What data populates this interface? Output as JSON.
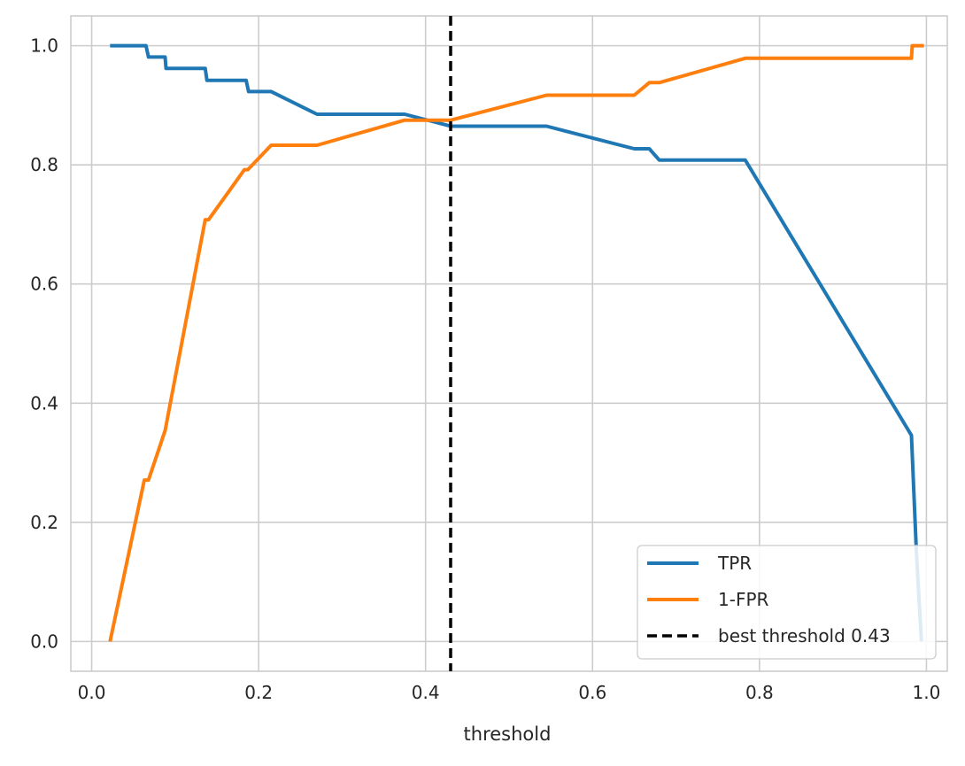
{
  "chart_data": {
    "type": "line",
    "title": "",
    "xlabel": "threshold",
    "ylabel": "",
    "xlim": [
      -0.025,
      1.025
    ],
    "ylim": [
      -0.05,
      1.05
    ],
    "xticks": [
      0.0,
      0.2,
      0.4,
      0.6,
      0.8,
      1.0
    ],
    "xtick_labels": [
      "0.0",
      "0.2",
      "0.4",
      "0.6",
      "0.8",
      "1.0"
    ],
    "yticks": [
      0.0,
      0.2,
      0.4,
      0.6,
      0.8,
      1.0
    ],
    "ytick_labels": [
      "0.0",
      "0.2",
      "0.4",
      "0.6",
      "0.8",
      "1.0"
    ],
    "grid": true,
    "legend_position": "lower-right",
    "series": [
      {
        "name": "TPR",
        "color": "#1f77b4",
        "style": "solid",
        "points": [
          [
            0.022,
            1.0
          ],
          [
            0.065,
            1.0
          ],
          [
            0.068,
            0.981
          ],
          [
            0.088,
            0.981
          ],
          [
            0.089,
            0.962
          ],
          [
            0.136,
            0.962
          ],
          [
            0.138,
            0.942
          ],
          [
            0.185,
            0.942
          ],
          [
            0.188,
            0.923
          ],
          [
            0.215,
            0.923
          ],
          [
            0.27,
            0.885
          ],
          [
            0.375,
            0.885
          ],
          [
            0.43,
            0.865
          ],
          [
            0.545,
            0.865
          ],
          [
            0.65,
            0.827
          ],
          [
            0.668,
            0.827
          ],
          [
            0.68,
            0.808
          ],
          [
            0.783,
            0.808
          ],
          [
            0.982,
            0.346
          ],
          [
            0.988,
            0.15
          ],
          [
            0.994,
            0.0
          ]
        ]
      },
      {
        "name": "1-FPR",
        "color": "#ff7f0e",
        "style": "solid",
        "points": [
          [
            0.022,
            0.0
          ],
          [
            0.063,
            0.271
          ],
          [
            0.068,
            0.271
          ],
          [
            0.088,
            0.354
          ],
          [
            0.136,
            0.708
          ],
          [
            0.14,
            0.708
          ],
          [
            0.183,
            0.792
          ],
          [
            0.187,
            0.792
          ],
          [
            0.215,
            0.833
          ],
          [
            0.27,
            0.833
          ],
          [
            0.375,
            0.875
          ],
          [
            0.43,
            0.875
          ],
          [
            0.545,
            0.917
          ],
          [
            0.65,
            0.917
          ],
          [
            0.668,
            0.938
          ],
          [
            0.68,
            0.938
          ],
          [
            0.783,
            0.979
          ],
          [
            0.982,
            0.979
          ],
          [
            0.983,
            1.0
          ],
          [
            0.997,
            1.0
          ]
        ]
      }
    ],
    "vline": {
      "name": "best threshold 0.43",
      "x": 0.43,
      "color": "#000000",
      "style": "dashed"
    }
  }
}
